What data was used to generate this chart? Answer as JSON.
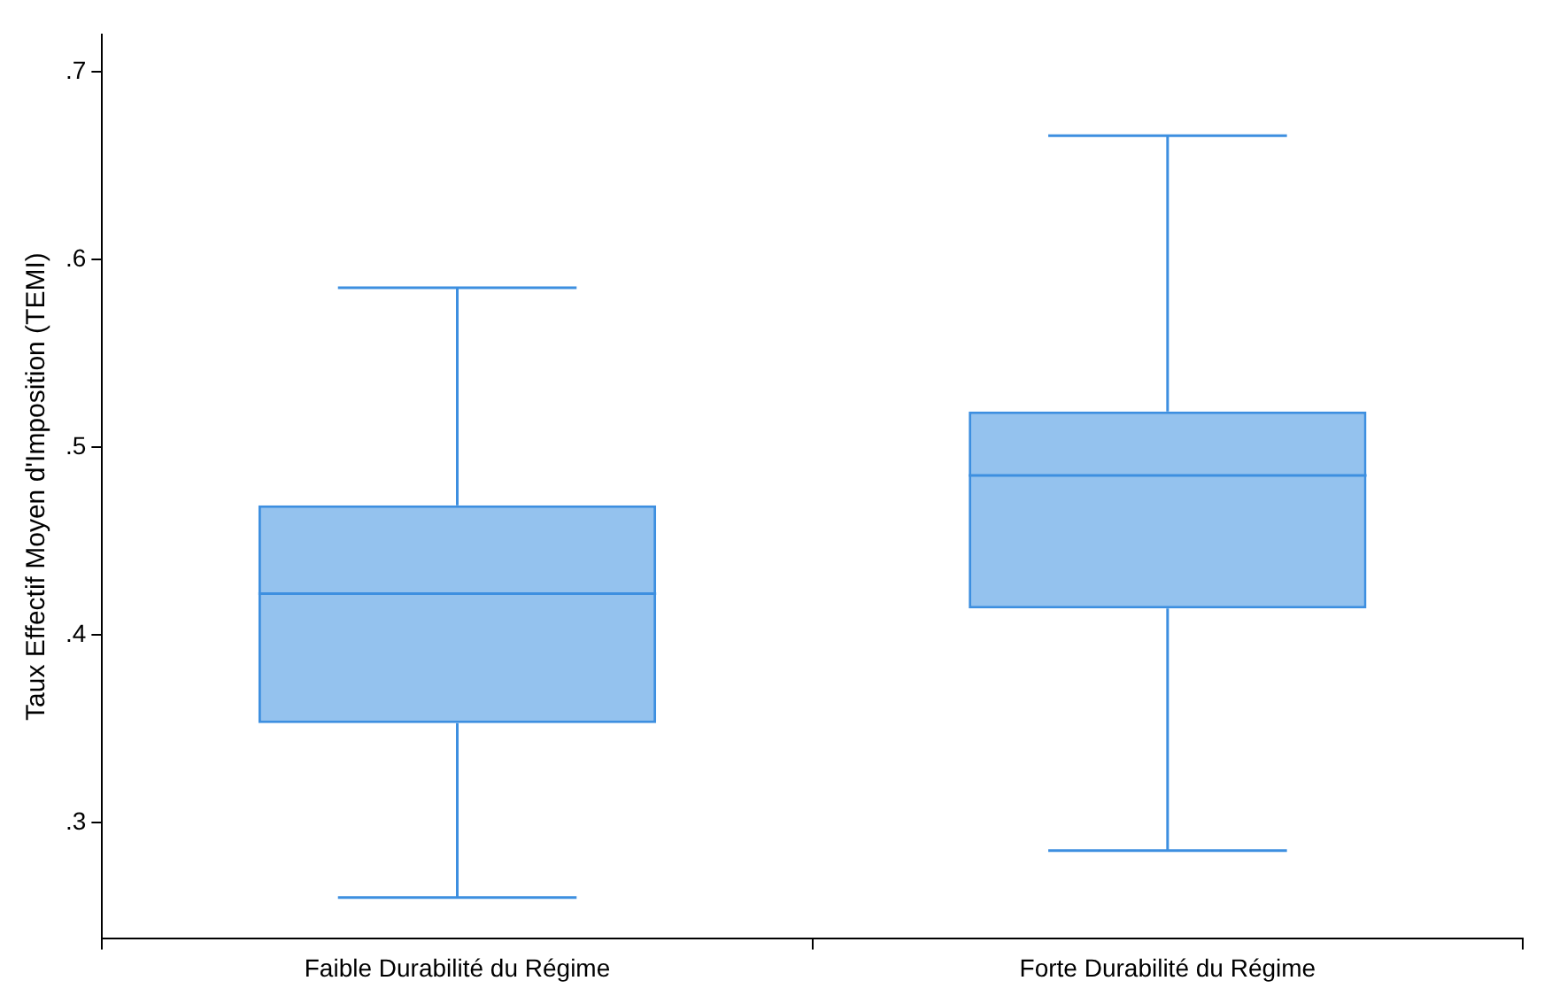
{
  "chart_data": {
    "type": "box",
    "ylabel": "Taux Effectif Moyen d'Imposition (TEMI)",
    "categories": [
      "Faible Durabilité du Régime",
      "Forte Durabilité du Régime"
    ],
    "boxes": [
      {
        "low": 0.26,
        "q1": 0.353,
        "median": 0.422,
        "q3": 0.469,
        "high": 0.585
      },
      {
        "low": 0.285,
        "q1": 0.414,
        "median": 0.485,
        "q3": 0.519,
        "high": 0.666
      }
    ],
    "color": "#3d8fe0",
    "ylim": [
      0.238,
      0.72
    ],
    "yticks": [
      {
        "value": 0.3,
        "label": ".3"
      },
      {
        "value": 0.4,
        "label": ".4"
      },
      {
        "value": 0.5,
        "label": ".5"
      },
      {
        "value": 0.6,
        "label": ".6"
      },
      {
        "value": 0.7,
        "label": ".7"
      }
    ],
    "grid": false,
    "legend": false
  }
}
